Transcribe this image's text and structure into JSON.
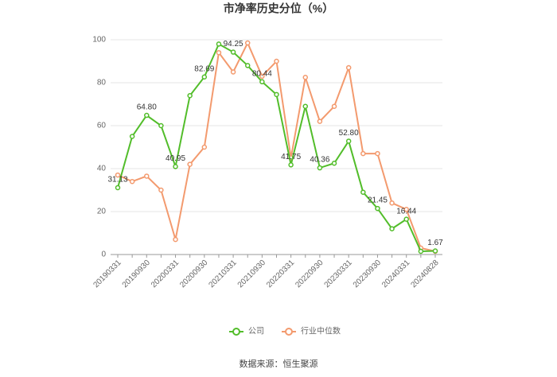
{
  "chart_data": {
    "type": "line",
    "title": "市净率历史分位（%）",
    "source": "数据来源：恒生聚源",
    "categories": [
      "20190331",
      null,
      "20190930",
      null,
      "20200331",
      null,
      "20200930",
      null,
      "20210331",
      null,
      "20210930",
      null,
      "20220331",
      null,
      "20220930",
      null,
      "20230331",
      null,
      "20230930",
      null,
      "20240331",
      null,
      "20240828"
    ],
    "series": [
      {
        "name": "公司",
        "color": "#52bd2a",
        "values": [
          31.13,
          55,
          64.8,
          60,
          40.95,
          74,
          82.69,
          98,
          94.25,
          88,
          80.44,
          74.5,
          41.75,
          69,
          40.36,
          42.5,
          52.8,
          29,
          21.45,
          12,
          16.44,
          1.5,
          1.67
        ],
        "value_labels": [
          "31.13",
          null,
          "64.80",
          null,
          "40.95",
          null,
          "82.69",
          null,
          "94.25",
          null,
          "80.44",
          null,
          "41.75",
          null,
          "40.36",
          null,
          "52.80",
          null,
          "21.45",
          null,
          "16.44",
          null,
          "1.67"
        ]
      },
      {
        "name": "行业中位数",
        "color": "#f39a6e",
        "values": [
          37,
          34,
          36.5,
          30,
          7,
          42,
          50,
          94,
          85,
          98.5,
          83,
          90,
          45,
          82.5,
          62,
          69,
          87,
          47,
          47,
          24,
          21,
          3,
          1.5
        ]
      }
    ],
    "ylim": [
      0,
      100
    ],
    "yticks": [
      0,
      20,
      40,
      60,
      80,
      100
    ],
    "grid": true
  }
}
